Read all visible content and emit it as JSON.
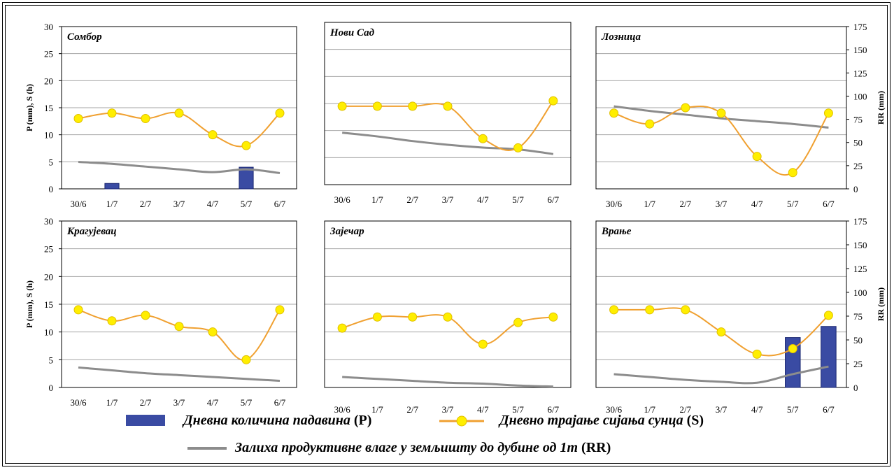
{
  "colors": {
    "bar": "#3a4ba3",
    "bar_stroke": "#1a2670",
    "sun_line": "#f0a030",
    "sun_marker": "#ffee00",
    "sun_marker_stroke": "#e0c000",
    "soil_line": "#8c8c8c",
    "grid": "#a6a6a6"
  },
  "axes": {
    "left_label": "P (mm), S (h)",
    "right_label": "RR (mm)"
  },
  "legend": {
    "precip_label": "Дневна количина падавина",
    "precip_code": "(P)",
    "sun_label": "Дневно трајање сијања сунца",
    "sun_code": "(S)",
    "soil_label": "Залиха продуктивне влаге у земљишту до дубине од 1m",
    "soil_code": "(RR)"
  },
  "chart_data": [
    {
      "type": "bar+line",
      "title": "Сомбор",
      "categories": [
        "30/6",
        "1/7",
        "2/7",
        "3/7",
        "4/7",
        "5/7",
        "6/7"
      ],
      "ylim": [
        0,
        30
      ],
      "yticks": [
        "0",
        "5",
        "10",
        "15",
        "20",
        "25",
        "30"
      ],
      "y2lim": [
        0,
        175
      ],
      "y2ticks": [
        "0",
        "25",
        "50",
        "75",
        "100",
        "125",
        "150",
        "175"
      ],
      "precipitation": [
        0,
        1,
        0,
        0,
        0,
        4,
        0
      ],
      "sunshine": [
        13,
        14,
        13,
        14,
        10,
        8,
        14
      ],
      "soil_moisture": [
        29,
        27,
        24,
        21,
        18,
        21,
        17
      ]
    },
    {
      "type": "bar+line",
      "title": "Нови Сад",
      "categories": [
        "30/6",
        "1/7",
        "2/7",
        "3/7",
        "4/7",
        "5/7",
        "6/7"
      ],
      "ylim": [
        0,
        30
      ],
      "yticks": [
        "0",
        "5",
        "10",
        "15",
        "20",
        "25",
        "30"
      ],
      "y2lim": [
        0,
        175
      ],
      "y2ticks": [
        "0",
        "25",
        "50",
        "75",
        "100",
        "125",
        "150",
        "175"
      ],
      "precipitation": [
        0,
        0,
        0,
        0,
        0,
        0,
        0
      ],
      "sunshine": [
        14.5,
        14.5,
        14.5,
        14.5,
        8.5,
        6.8,
        15.5
      ],
      "soil_moisture": [
        56,
        52,
        47,
        43,
        40,
        38,
        33
      ]
    },
    {
      "type": "bar+line",
      "title": "Лозница",
      "categories": [
        "30/6",
        "1/7",
        "2/7",
        "3/7",
        "4/7",
        "5/7",
        "6/7"
      ],
      "ylim": [
        0,
        30
      ],
      "yticks": [
        "0",
        "5",
        "10",
        "15",
        "20",
        "25",
        "30"
      ],
      "y2lim": [
        0,
        175
      ],
      "y2ticks": [
        "0",
        "25",
        "50",
        "75",
        "100",
        "125",
        "150",
        "175"
      ],
      "precipitation": [
        0,
        0,
        0,
        0,
        0,
        0,
        0
      ],
      "sunshine": [
        14,
        12,
        15,
        14,
        6,
        3,
        14
      ],
      "soil_moisture": [
        89,
        84,
        80,
        76,
        73,
        70,
        66
      ]
    },
    {
      "type": "bar+line",
      "title": "Крагујевац",
      "categories": [
        "30/6",
        "1/7",
        "2/7",
        "3/7",
        "4/7",
        "5/7",
        "6/7"
      ],
      "ylim": [
        0,
        30
      ],
      "yticks": [
        "0",
        "5",
        "10",
        "15",
        "20",
        "25",
        "30"
      ],
      "y2lim": [
        0,
        175
      ],
      "y2ticks": [
        "0",
        "25",
        "50",
        "75",
        "100",
        "125",
        "150",
        "175"
      ],
      "precipitation": [
        0,
        0,
        0,
        0,
        0,
        0,
        0
      ],
      "sunshine": [
        14,
        12,
        13,
        11,
        10,
        5,
        14
      ],
      "soil_moisture": [
        21,
        18,
        15,
        13,
        11,
        9,
        7
      ]
    },
    {
      "type": "bar+line",
      "title": "Зајечар",
      "categories": [
        "30/6",
        "1/7",
        "2/7",
        "3/7",
        "4/7",
        "5/7",
        "6/7"
      ],
      "ylim": [
        0,
        30
      ],
      "yticks": [
        "0",
        "5",
        "10",
        "15",
        "20",
        "25",
        "30"
      ],
      "y2lim": [
        0,
        175
      ],
      "y2ticks": [
        "0",
        "25",
        "50",
        "75",
        "100",
        "125",
        "150",
        "175"
      ],
      "precipitation": [
        0,
        0,
        0,
        0,
        0,
        0,
        0
      ],
      "sunshine": [
        10.7,
        12.7,
        12.7,
        12.7,
        7.8,
        11.7,
        12.7
      ],
      "soil_moisture": [
        11,
        9,
        7,
        5,
        4,
        2,
        1
      ]
    },
    {
      "type": "bar+line",
      "title": "Врање",
      "categories": [
        "30/6",
        "1/7",
        "2/7",
        "3/7",
        "4/7",
        "5/7",
        "6/7"
      ],
      "ylim": [
        0,
        30
      ],
      "yticks": [
        "0",
        "5",
        "10",
        "15",
        "20",
        "25",
        "30"
      ],
      "y2lim": [
        0,
        175
      ],
      "y2ticks": [
        "0",
        "25",
        "50",
        "75",
        "100",
        "125",
        "150",
        "175"
      ],
      "precipitation": [
        0,
        0,
        0,
        0,
        0,
        9,
        11
      ],
      "sunshine": [
        14,
        14,
        14,
        10,
        6,
        7,
        13
      ],
      "soil_moisture": [
        14,
        11,
        8,
        6,
        5,
        14,
        22
      ]
    }
  ]
}
